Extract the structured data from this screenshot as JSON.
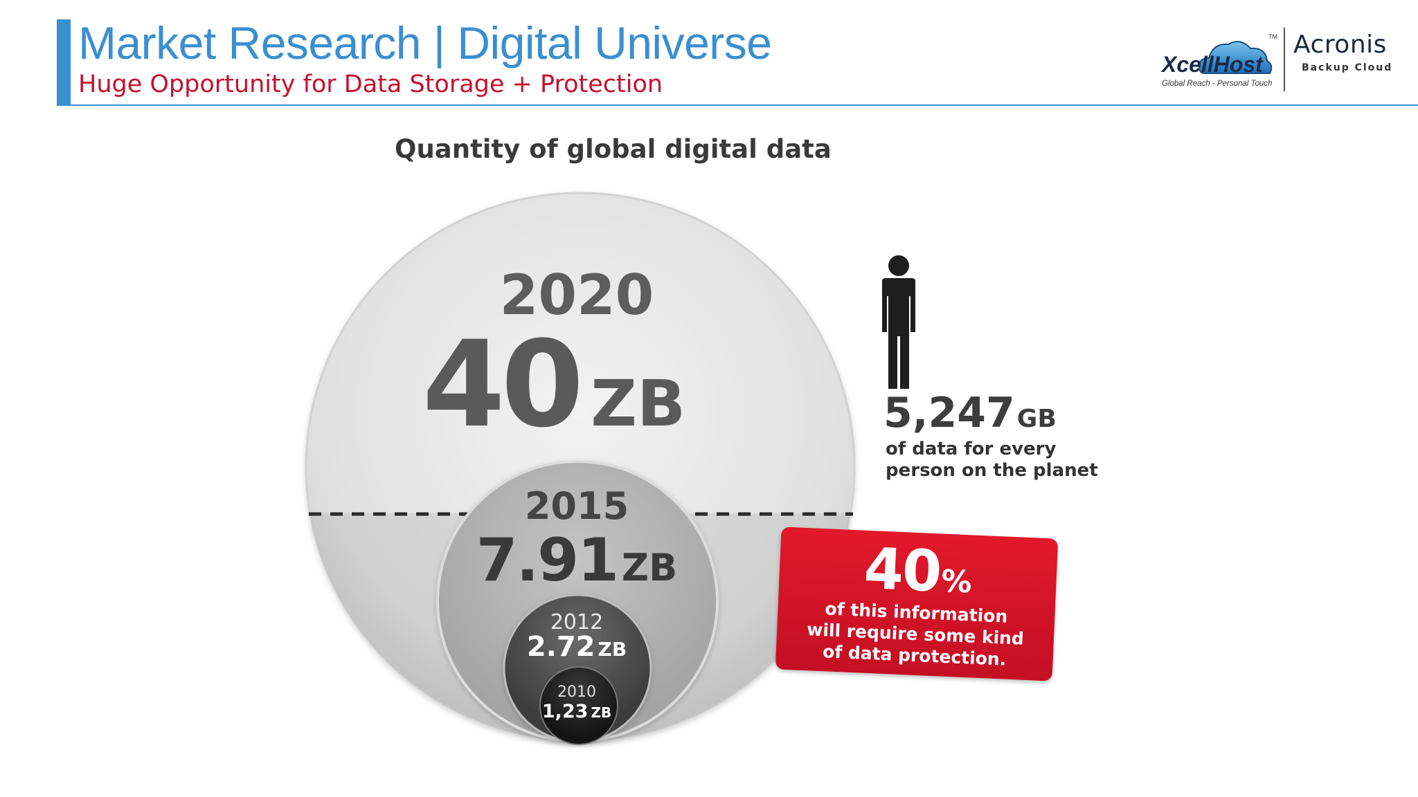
{
  "header": {
    "title": "Market Research | Digital Universe",
    "subtitle": "Huge Opportunity for Data Storage + Protection"
  },
  "logos": {
    "xcellhost": {
      "name": "XcellHost",
      "trademark": "TM",
      "tagline": "Global Reach - Personal Touch"
    },
    "acronis": {
      "name": "Acronis",
      "tagline": "Backup Cloud"
    }
  },
  "figure": {
    "title": "Quantity of global digital data",
    "circles": [
      {
        "year": "2020",
        "value": "40",
        "unit": "ZB"
      },
      {
        "year": "2015",
        "value": "7.91",
        "unit": "ZB"
      },
      {
        "year": "2012",
        "value": "2.72",
        "unit": "ZB"
      },
      {
        "year": "2010",
        "value": "1,23",
        "unit": "ZB"
      }
    ],
    "per_person": {
      "value": "5,247",
      "unit": "GB",
      "description_line1": "of data for every",
      "description_line2": "person on the planet"
    },
    "protection_callout": {
      "value": "40",
      "unit": "%",
      "description": "of this information\nwill require some kind\nof data protection."
    }
  },
  "colors": {
    "accent_blue": "#3a8fd0",
    "subtitle_red": "#c8102e",
    "callout_red": "#d8162a"
  }
}
